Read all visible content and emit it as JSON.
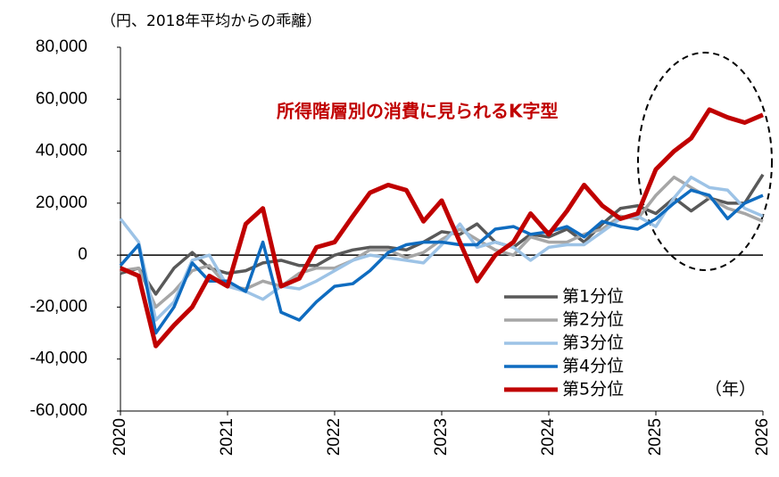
{
  "chart_data": {
    "type": "line",
    "subtitle": "（円、2018年平均からの乖離）",
    "annotation": "所得階層別の消費に見られるK字型",
    "x_unit": "（年）",
    "x": [
      2020,
      2020.17,
      2020.33,
      2020.5,
      2020.67,
      2020.83,
      2021,
      2021.17,
      2021.33,
      2021.5,
      2021.67,
      2021.83,
      2022,
      2022.17,
      2022.33,
      2022.5,
      2022.67,
      2022.83,
      2023,
      2023.17,
      2023.33,
      2023.5,
      2023.67,
      2023.83,
      2024,
      2024.17,
      2024.33,
      2024.5,
      2024.67,
      2024.83,
      2025,
      2025.17,
      2025.33,
      2025.5,
      2025.67,
      2025.83,
      2026
    ],
    "series": [
      {
        "name": "第1分位",
        "color": "#595959",
        "width": 3.5,
        "values": [
          -7000,
          -5000,
          -15000,
          -5000,
          1000,
          -5000,
          -7000,
          -6000,
          -3000,
          -2000,
          -4000,
          -4000,
          0,
          2000,
          3000,
          3000,
          2000,
          5000,
          9000,
          8000,
          12000,
          5000,
          3000,
          8000,
          7000,
          10000,
          5000,
          12000,
          18000,
          19000,
          16000,
          22000,
          17000,
          22000,
          20000,
          20000,
          31000
        ]
      },
      {
        "name": "第2分位",
        "color": "#a6a6a6",
        "width": 3.5,
        "values": [
          -6000,
          -5000,
          -20000,
          -14000,
          -6000,
          -4000,
          -12000,
          -13000,
          -10000,
          -12000,
          -7000,
          -5000,
          -5000,
          -2000,
          2000,
          2000,
          -1000,
          1000,
          6000,
          10000,
          6000,
          2000,
          0,
          7000,
          5000,
          5000,
          8000,
          10000,
          15000,
          14000,
          23000,
          30000,
          26000,
          22000,
          18000,
          16000,
          13000
        ]
      },
      {
        "name": "第3分位",
        "color": "#9dc3e6",
        "width": 3.5,
        "values": [
          14000,
          5000,
          -25000,
          -18000,
          -2000,
          0,
          -12000,
          -14000,
          -17000,
          -12000,
          -13000,
          -10000,
          -6000,
          -2000,
          0,
          -1000,
          -2000,
          -3000,
          4000,
          12000,
          3000,
          5000,
          3000,
          -2000,
          3000,
          4000,
          4000,
          9000,
          14000,
          15000,
          11000,
          22000,
          30000,
          26000,
          25000,
          18000,
          15000
        ]
      },
      {
        "name": "第4分位",
        "color": "#0f6cc0",
        "width": 3.5,
        "values": [
          -4000,
          4000,
          -30000,
          -20000,
          -3000,
          -10000,
          -10000,
          -14000,
          5000,
          -22000,
          -25000,
          -18000,
          -12000,
          -11000,
          -6000,
          1000,
          4000,
          5000,
          5000,
          4000,
          4000,
          10000,
          11000,
          8000,
          9000,
          11000,
          7000,
          13000,
          11000,
          10000,
          14000,
          20000,
          25000,
          23000,
          14000,
          20000,
          23000
        ]
      },
      {
        "name": "第5分位",
        "color": "#c00000",
        "width": 5,
        "values": [
          -5000,
          -8000,
          -35000,
          -27000,
          -20000,
          -8000,
          -12000,
          12000,
          18000,
          -12000,
          -9000,
          3000,
          5000,
          15000,
          24000,
          27000,
          25000,
          13000,
          21000,
          5000,
          -10000,
          0,
          5000,
          16000,
          8000,
          17000,
          27000,
          19000,
          14000,
          16000,
          33000,
          40000,
          45000,
          56000,
          53000,
          51000,
          54000
        ]
      }
    ],
    "xlim": [
      2020,
      2026
    ],
    "xticks": [
      2020,
      2021,
      2022,
      2023,
      2024,
      2025,
      2026
    ],
    "ylim": [
      -60000,
      80000
    ],
    "yticks": [
      {
        "value": -60000,
        "label": "-60,000"
      },
      {
        "value": -40000,
        "label": "-40,000"
      },
      {
        "value": -20000,
        "label": "-20,000"
      },
      0,
      {
        "value": 20000,
        "label": "20,000"
      },
      {
        "value": 40000,
        "label": "40,000"
      },
      {
        "value": 60000,
        "label": "60,000"
      },
      {
        "value": 80000,
        "label": "80,000"
      }
    ],
    "annotation_color": "#c00000"
  }
}
